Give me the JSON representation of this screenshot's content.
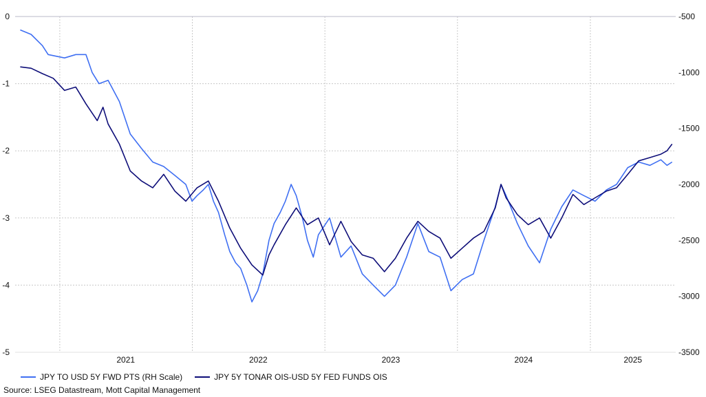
{
  "chart_data": {
    "type": "line",
    "title": "",
    "x_ticks": [
      "2021",
      "2022",
      "2023",
      "2024",
      "2025"
    ],
    "left_axis": {
      "ticks": [
        0,
        -1,
        -2,
        -3,
        -4,
        -5
      ],
      "ylim": [
        -5,
        0
      ]
    },
    "right_axis": {
      "ticks": [
        -500,
        -1000,
        -1500,
        -2000,
        -2500,
        -3000,
        -3500
      ],
      "ylim": [
        -3500,
        -500
      ]
    },
    "grid": true,
    "legend_position": "bottom-left",
    "series": [
      {
        "name": "JPY TO USD 5Y FWD PTS (RH Scale)",
        "axis": "right",
        "color": "#3f6ff2",
        "points": [
          [
            "2020-09-15",
            -620
          ],
          [
            "2020-10-15",
            -660
          ],
          [
            "2020-11-15",
            -760
          ],
          [
            "2020-12-01",
            -840
          ],
          [
            "2021-01-15",
            -870
          ],
          [
            "2021-02-15",
            -840
          ],
          [
            "2021-03-15",
            -840
          ],
          [
            "2021-04-01",
            -1000
          ],
          [
            "2021-04-20",
            -1100
          ],
          [
            "2021-05-15",
            -1070
          ],
          [
            "2021-06-15",
            -1260
          ],
          [
            "2021-07-15",
            -1550
          ],
          [
            "2021-08-15",
            -1680
          ],
          [
            "2021-09-15",
            -1800
          ],
          [
            "2021-10-15",
            -1840
          ],
          [
            "2021-11-15",
            -1920
          ],
          [
            "2021-12-15",
            -2000
          ],
          [
            "2022-01-01",
            -2150
          ],
          [
            "2022-01-15",
            -2100
          ],
          [
            "2022-02-01",
            -2050
          ],
          [
            "2022-02-15",
            -2000
          ],
          [
            "2022-03-01",
            -2150
          ],
          [
            "2022-03-15",
            -2250
          ],
          [
            "2022-04-01",
            -2450
          ],
          [
            "2022-04-15",
            -2600
          ],
          [
            "2022-05-01",
            -2700
          ],
          [
            "2022-05-15",
            -2750
          ],
          [
            "2022-06-01",
            -2900
          ],
          [
            "2022-06-15",
            -3050
          ],
          [
            "2022-07-01",
            -2950
          ],
          [
            "2022-07-15",
            -2800
          ],
          [
            "2022-08-01",
            -2500
          ],
          [
            "2022-08-15",
            -2350
          ],
          [
            "2022-09-01",
            -2250
          ],
          [
            "2022-09-15",
            -2150
          ],
          [
            "2022-10-01",
            -2000
          ],
          [
            "2022-10-15",
            -2100
          ],
          [
            "2022-11-01",
            -2300
          ],
          [
            "2022-11-15",
            -2500
          ],
          [
            "2022-12-01",
            -2650
          ],
          [
            "2022-12-15",
            -2450
          ],
          [
            "2023-01-15",
            -2300
          ],
          [
            "2023-02-15",
            -2650
          ],
          [
            "2023-03-15",
            -2550
          ],
          [
            "2023-04-15",
            -2800
          ],
          [
            "2023-05-15",
            -2900
          ],
          [
            "2023-06-15",
            -3000
          ],
          [
            "2023-07-15",
            -2900
          ],
          [
            "2023-08-15",
            -2650
          ],
          [
            "2023-09-15",
            -2350
          ],
          [
            "2023-10-15",
            -2600
          ],
          [
            "2023-11-15",
            -2650
          ],
          [
            "2023-12-15",
            -2950
          ],
          [
            "2024-01-15",
            -2850
          ],
          [
            "2024-02-15",
            -2800
          ],
          [
            "2024-03-15",
            -2500
          ],
          [
            "2024-04-15",
            -2200
          ],
          [
            "2024-05-01",
            -2000
          ],
          [
            "2024-05-15",
            -2100
          ],
          [
            "2024-06-15",
            -2350
          ],
          [
            "2024-07-15",
            -2550
          ],
          [
            "2024-08-15",
            -2700
          ],
          [
            "2024-09-15",
            -2400
          ],
          [
            "2024-10-15",
            -2200
          ],
          [
            "2024-11-15",
            -2050
          ],
          [
            "2024-12-15",
            -2100
          ],
          [
            "2025-01-15",
            -2150
          ],
          [
            "2025-02-15",
            -2050
          ],
          [
            "2025-03-15",
            -2000
          ],
          [
            "2025-04-15",
            -1850
          ],
          [
            "2025-05-15",
            -1800
          ],
          [
            "2025-06-15",
            -1830
          ],
          [
            "2025-07-15",
            -1780
          ],
          [
            "2025-08-01",
            -1830
          ],
          [
            "2025-08-15",
            -1800
          ]
        ]
      },
      {
        "name": "JPY 5Y TONAR OIS-USD 5Y FED FUNDS OIS",
        "axis": "left",
        "color": "#0d0d78",
        "points": [
          [
            "2020-09-15",
            -0.75
          ],
          [
            "2020-10-15",
            -0.77
          ],
          [
            "2020-11-15",
            -0.85
          ],
          [
            "2020-12-15",
            -0.92
          ],
          [
            "2021-01-15",
            -1.1
          ],
          [
            "2021-02-15",
            -1.05
          ],
          [
            "2021-03-15",
            -1.3
          ],
          [
            "2021-04-15",
            -1.55
          ],
          [
            "2021-05-01",
            -1.35
          ],
          [
            "2021-05-15",
            -1.6
          ],
          [
            "2021-06-15",
            -1.9
          ],
          [
            "2021-07-15",
            -2.3
          ],
          [
            "2021-08-15",
            -2.45
          ],
          [
            "2021-09-15",
            -2.55
          ],
          [
            "2021-10-15",
            -2.35
          ],
          [
            "2021-11-15",
            -2.6
          ],
          [
            "2021-12-15",
            -2.75
          ],
          [
            "2022-01-15",
            -2.55
          ],
          [
            "2022-02-15",
            -2.45
          ],
          [
            "2022-03-15",
            -2.75
          ],
          [
            "2022-04-15",
            -3.15
          ],
          [
            "2022-05-15",
            -3.45
          ],
          [
            "2022-06-15",
            -3.7
          ],
          [
            "2022-07-15",
            -3.85
          ],
          [
            "2022-08-01",
            -3.55
          ],
          [
            "2022-08-15",
            -3.4
          ],
          [
            "2022-09-15",
            -3.1
          ],
          [
            "2022-10-15",
            -2.85
          ],
          [
            "2022-11-15",
            -3.1
          ],
          [
            "2022-12-15",
            -3.0
          ],
          [
            "2023-01-15",
            -3.4
          ],
          [
            "2023-02-15",
            -3.05
          ],
          [
            "2023-03-15",
            -3.35
          ],
          [
            "2023-04-15",
            -3.55
          ],
          [
            "2023-05-15",
            -3.6
          ],
          [
            "2023-06-15",
            -3.8
          ],
          [
            "2023-07-15",
            -3.6
          ],
          [
            "2023-08-15",
            -3.3
          ],
          [
            "2023-09-15",
            -3.05
          ],
          [
            "2023-10-15",
            -3.2
          ],
          [
            "2023-11-15",
            -3.3
          ],
          [
            "2023-12-15",
            -3.6
          ],
          [
            "2024-01-15",
            -3.45
          ],
          [
            "2024-02-15",
            -3.3
          ],
          [
            "2024-03-15",
            -3.2
          ],
          [
            "2024-04-15",
            -2.85
          ],
          [
            "2024-05-01",
            -2.5
          ],
          [
            "2024-05-15",
            -2.7
          ],
          [
            "2024-06-15",
            -2.95
          ],
          [
            "2024-07-15",
            -3.1
          ],
          [
            "2024-08-15",
            -3.0
          ],
          [
            "2024-09-15",
            -3.3
          ],
          [
            "2024-10-15",
            -3.0
          ],
          [
            "2024-11-15",
            -2.65
          ],
          [
            "2024-12-15",
            -2.8
          ],
          [
            "2025-01-15",
            -2.7
          ],
          [
            "2025-02-15",
            -2.6
          ],
          [
            "2025-03-15",
            -2.55
          ],
          [
            "2025-04-15",
            -2.35
          ],
          [
            "2025-05-15",
            -2.15
          ],
          [
            "2025-06-15",
            -2.1
          ],
          [
            "2025-07-15",
            -2.05
          ],
          [
            "2025-08-01",
            -2.0
          ],
          [
            "2025-08-15",
            -1.9
          ]
        ]
      }
    ]
  },
  "legend": {
    "item1": "JPY TO USD 5Y FWD PTS (RH Scale)",
    "item2": "JPY 5Y TONAR OIS-USD 5Y FED FUNDS OIS"
  },
  "source": "Source: LSEG Datastream, Mott Capital Management"
}
